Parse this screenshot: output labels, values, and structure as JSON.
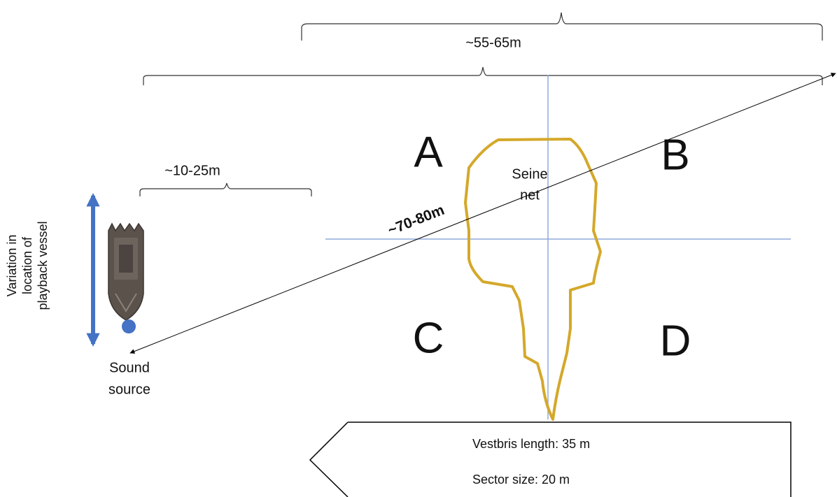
{
  "dimensions": {
    "outer_span": "~55-65m",
    "offset": "~10-25m",
    "diagonal": "~70-80m"
  },
  "sectors": [
    "A",
    "B",
    "C",
    "D"
  ],
  "net_label": [
    "Seine",
    "net"
  ],
  "vessel_label": [
    "Variation in",
    "location of",
    "playback vessel"
  ],
  "source_label": [
    "Sound",
    "source"
  ],
  "info": [
    "Vestbris length: 35 m",
    "Sector size: 20 m"
  ]
}
